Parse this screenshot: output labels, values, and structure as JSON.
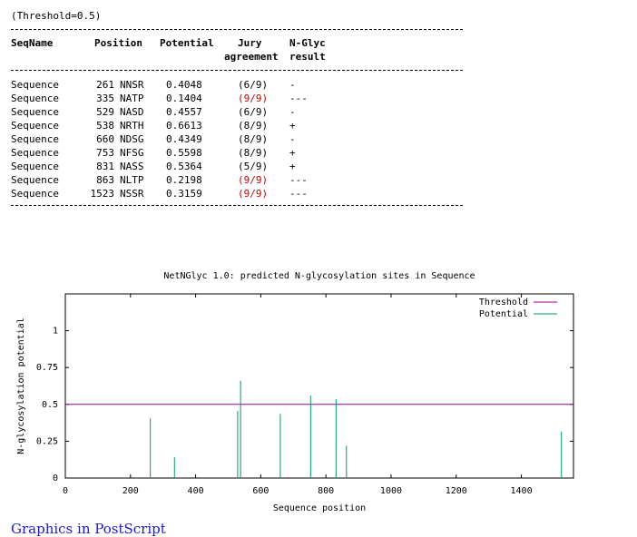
{
  "threshold_line": "(Threshold=0.5)",
  "table": {
    "headers": {
      "seqname": "SeqName",
      "position": "Position",
      "potential": "Potential",
      "jury_1": "Jury",
      "jury_2": "agreement",
      "nglyc_1": "N-Glyc",
      "nglyc_2": "result"
    },
    "rows": [
      {
        "seq": "Sequence",
        "pos": "261",
        "motif": "NNSR",
        "potential": "0.4048",
        "jury": "(6/9)",
        "result": "-",
        "jury_red": false
      },
      {
        "seq": "Sequence",
        "pos": "335",
        "motif": "NATP",
        "potential": "0.1404",
        "jury": "(9/9)",
        "result": "---",
        "jury_red": true
      },
      {
        "seq": "Sequence",
        "pos": "529",
        "motif": "NASD",
        "potential": "0.4557",
        "jury": "(6/9)",
        "result": "-",
        "jury_red": false
      },
      {
        "seq": "Sequence",
        "pos": "538",
        "motif": "NRTH",
        "potential": "0.6613",
        "jury": "(8/9)",
        "result": "+",
        "jury_red": false
      },
      {
        "seq": "Sequence",
        "pos": "660",
        "motif": "NDSG",
        "potential": "0.4349",
        "jury": "(8/9)",
        "result": "-",
        "jury_red": false
      },
      {
        "seq": "Sequence",
        "pos": "753",
        "motif": "NFSG",
        "potential": "0.5598",
        "jury": "(8/9)",
        "result": "+",
        "jury_red": false
      },
      {
        "seq": "Sequence",
        "pos": "831",
        "motif": "NASS",
        "potential": "0.5364",
        "jury": "(5/9)",
        "result": "+",
        "jury_red": false
      },
      {
        "seq": "Sequence",
        "pos": "863",
        "motif": "NLTP",
        "potential": "0.2198",
        "jury": "(9/9)",
        "result": "---",
        "jury_red": true
      },
      {
        "seq": "Sequence",
        "pos": "1523",
        "motif": "NSSR",
        "potential": "0.3159",
        "jury": "(9/9)",
        "result": "---",
        "jury_red": true
      }
    ]
  },
  "colors": {
    "threshold": "#990099",
    "potential": "#009966",
    "jury_red": "#cc0000",
    "link": "#1a1acc"
  },
  "chart_data": {
    "type": "bar",
    "title": "NetNGlyc 1.0: predicted N-glycosylation sites in Sequence",
    "xlabel": "Sequence position",
    "ylabel": "N-glycosylation potential",
    "xlim": [
      0,
      1560
    ],
    "ylim": [
      0,
      1.25
    ],
    "xticks": [
      0,
      200,
      400,
      600,
      800,
      1000,
      1200,
      1400
    ],
    "yticks": [
      0,
      0.25,
      0.5,
      0.75,
      1
    ],
    "ytick_labels": [
      "0",
      "0.25",
      "0.5",
      "0.75",
      "1"
    ],
    "threshold": 0.5,
    "legend_position": "top-right",
    "series": [
      {
        "name": "Threshold",
        "type": "line",
        "values": [
          0.5
        ]
      },
      {
        "name": "Potential",
        "type": "impulse",
        "x": [
          261,
          335,
          529,
          538,
          660,
          753,
          831,
          863,
          1523
        ],
        "values": [
          0.4048,
          0.1404,
          0.4557,
          0.6613,
          0.4349,
          0.5598,
          0.5364,
          0.2198,
          0.3159
        ]
      }
    ]
  },
  "footer_link": "Graphics in PostScript"
}
